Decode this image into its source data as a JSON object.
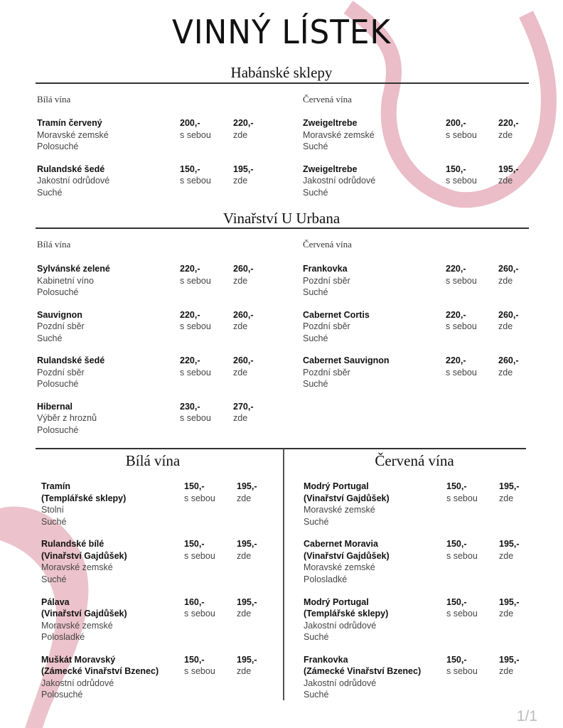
{
  "title": "VINNÝ LÍSTEK",
  "accent_color": "#d9879a",
  "sections": [
    {
      "heading": "Habánské sklepy",
      "columns": [
        {
          "subheading": "Bílá vína",
          "wines": [
            {
              "name": "Tramín červený",
              "lines": [
                "Moravské zemské",
                "Polosuché"
              ],
              "price_takeaway": "200,-",
              "price_here": "220,-"
            },
            {
              "name": "Rulandské šedé",
              "lines": [
                "Jakostní odrůdové",
                "Suché"
              ],
              "price_takeaway": "150,-",
              "price_here": "195,-"
            }
          ]
        },
        {
          "subheading": "Červená vína",
          "wines": [
            {
              "name": "Zweigeltrebe",
              "lines": [
                "Moravské zemské",
                "Suché"
              ],
              "price_takeaway": "200,-",
              "price_here": "220,-"
            },
            {
              "name": "Zweigeltrebe",
              "lines": [
                "Jakostní odrůdové",
                "Suché"
              ],
              "price_takeaway": "150,-",
              "price_here": "195,-"
            }
          ]
        }
      ]
    },
    {
      "heading": "Vinařství U Urbana",
      "columns": [
        {
          "subheading": "Bílá vína",
          "wines": [
            {
              "name": "Sylvánské zelené",
              "lines": [
                "Kabinetní víno",
                "Polosuché"
              ],
              "price_takeaway": "220,-",
              "price_here": "260,-"
            },
            {
              "name": "Sauvignon",
              "lines": [
                "Pozdní sběr",
                "Suché"
              ],
              "price_takeaway": "220,-",
              "price_here": "260,-"
            },
            {
              "name": "Rulandské šedé",
              "lines": [
                "Pozdní sběr",
                "Polosuché"
              ],
              "price_takeaway": "220,-",
              "price_here": "260,-"
            },
            {
              "name": "Hibernal",
              "lines": [
                "Výběr z hroznů",
                "Polosuché"
              ],
              "price_takeaway": "230,-",
              "price_here": "270,-"
            }
          ]
        },
        {
          "subheading": "Červená vína",
          "wines": [
            {
              "name": "Frankovka",
              "lines": [
                "Pozdní sběr",
                "Suché"
              ],
              "price_takeaway": "220,-",
              "price_here": "260,-"
            },
            {
              "name": "Cabernet Cortis",
              "lines": [
                "Pozdní sběr",
                "Suché"
              ],
              "price_takeaway": "220,-",
              "price_here": "260,-"
            },
            {
              "name": "Cabernet Sauvignon",
              "lines": [
                "Pozdní sběr",
                "Suché"
              ],
              "price_takeaway": "220,-",
              "price_here": "260,-"
            }
          ]
        }
      ]
    }
  ],
  "bottom": {
    "columns": [
      {
        "heading": "Bílá vína",
        "wines": [
          {
            "name": "Tramín",
            "winery": "(Templářské sklepy)",
            "lines": [
              "Stolní",
              "Suché"
            ],
            "price_takeaway": "150,-",
            "price_here": "195,-"
          },
          {
            "name": "Rulandské bílé",
            "winery": "(Vinařství Gajdůšek)",
            "lines": [
              "Moravské zemské",
              "Suché"
            ],
            "price_takeaway": "150,-",
            "price_here": "195,-"
          },
          {
            "name": "Pálava",
            "winery": "(Vinařství Gajdůšek)",
            "lines": [
              "Moravské zemské",
              "Polosladké"
            ],
            "price_takeaway": "160,-",
            "price_here": "195,-"
          },
          {
            "name": "Muškát Moravský",
            "winery": "(Zámecké Vinařství Bzenec)",
            "lines": [
              "Jakostní odrůdové",
              "Polosuché"
            ],
            "price_takeaway": "150,-",
            "price_here": "195,-"
          }
        ]
      },
      {
        "heading": "Červená vína",
        "wines": [
          {
            "name": "Modrý Portugal",
            "winery": "(Vinařství Gajdůšek)",
            "lines": [
              "Moravské zemské",
              "Suché"
            ],
            "price_takeaway": "150,-",
            "price_here": "195,-"
          },
          {
            "name": "Cabernet Moravia",
            "winery": "(Vinařství Gajdůšek)",
            "lines": [
              "Moravské zemské",
              "Polosladké"
            ],
            "price_takeaway": "150,-",
            "price_here": "195,-"
          },
          {
            "name": "Modrý Portugal",
            "winery": "(Templářské sklepy)",
            "lines": [
              "Jakostní odrůdové",
              "Suché"
            ],
            "price_takeaway": "150,-",
            "price_here": "195,-"
          },
          {
            "name": "Frankovka",
            "winery": "(Zámecké Vinařství Bzenec)",
            "lines": [
              "Jakostní odrůdové",
              "Suché"
            ],
            "price_takeaway": "150,-",
            "price_here": "195,-"
          }
        ]
      }
    ]
  },
  "labels": {
    "takeaway": "s sebou",
    "here": "zde"
  },
  "page_number": "1/1"
}
